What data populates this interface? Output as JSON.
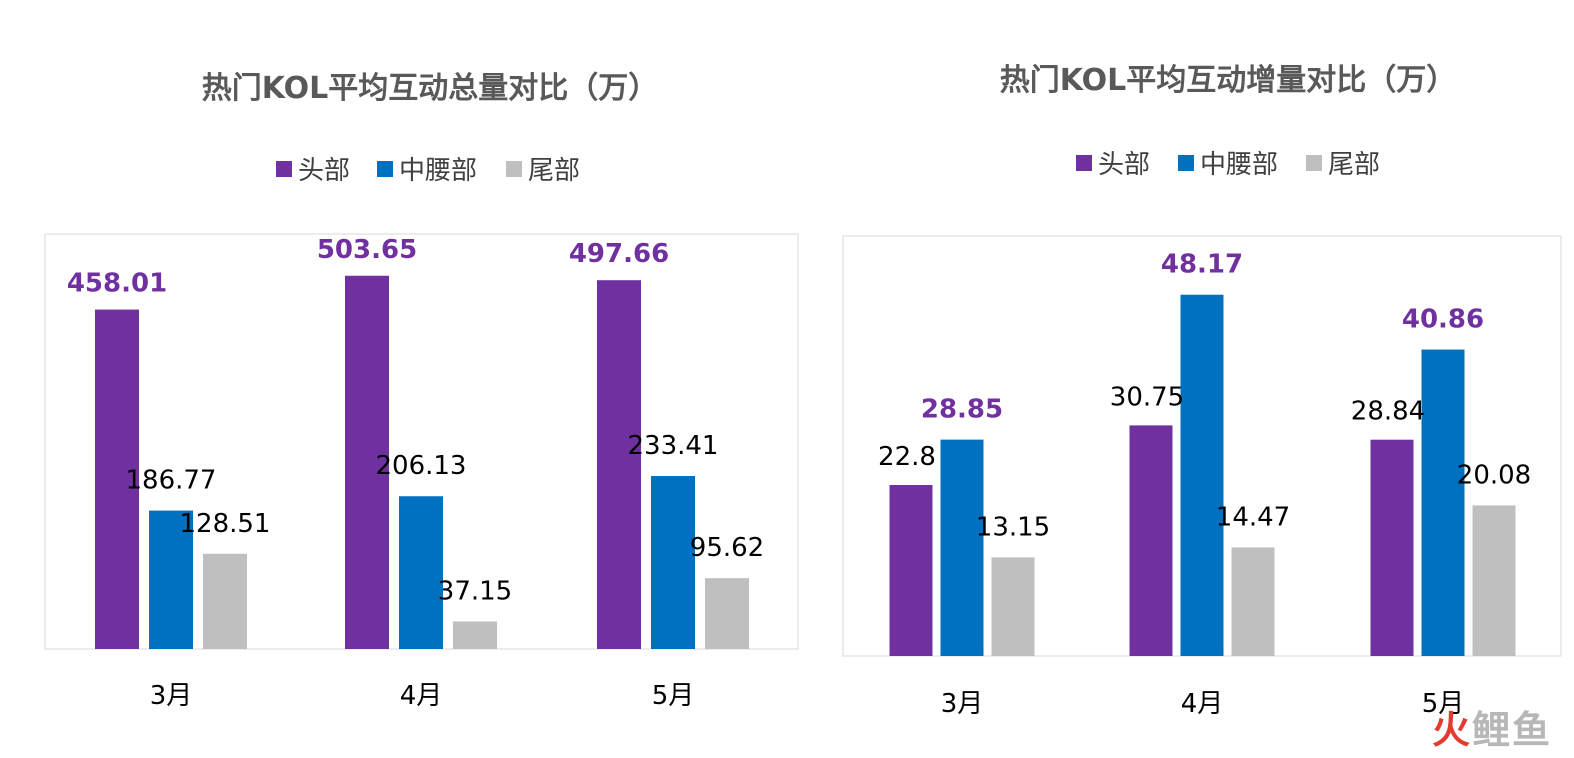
{
  "colors": {
    "head": "#7030a0",
    "mid": "#0070c0",
    "tail": "#bfbfbf",
    "plot_border": "#d9d9d9"
  },
  "chart_data": [
    {
      "type": "bar",
      "title": "热门KOL平均互动总量对比（万）",
      "categories": [
        "3月",
        "4月",
        "5月"
      ],
      "series": [
        {
          "name": "头部",
          "values": [
            458.01,
            503.65,
            497.66
          ],
          "labels": [
            "458.01",
            "503.65",
            "497.66"
          ]
        },
        {
          "name": "中腰部",
          "values": [
            186.77,
            206.13,
            233.41
          ],
          "labels": [
            "186.77",
            "206.13",
            "233.41"
          ]
        },
        {
          "name": "尾部",
          "values": [
            128.51,
            37.15,
            95.62
          ],
          "labels": [
            "128.51",
            "37.15",
            "95.62"
          ]
        }
      ],
      "legend_position": "top",
      "grid": false,
      "ylim": [
        0,
        560
      ]
    },
    {
      "type": "bar",
      "title": "热门KOL平均互动增量对比（万）",
      "categories": [
        "3月",
        "4月",
        "5月"
      ],
      "series": [
        {
          "name": "头部",
          "values": [
            22.8,
            30.75,
            28.84
          ],
          "labels": [
            "22.8",
            "30.75",
            "28.84"
          ]
        },
        {
          "name": "中腰部",
          "values": [
            28.85,
            48.17,
            40.86
          ],
          "labels": [
            "28.85",
            "48.17",
            "40.86"
          ]
        },
        {
          "name": "尾部",
          "values": [
            13.15,
            14.47,
            20.08
          ],
          "labels": [
            "13.15",
            "14.47",
            "20.08"
          ]
        }
      ],
      "legend_position": "top",
      "grid": false,
      "ylim": [
        0,
        56
      ]
    }
  ],
  "watermark": {
    "hot": "火",
    "rest": "鲤鱼"
  }
}
